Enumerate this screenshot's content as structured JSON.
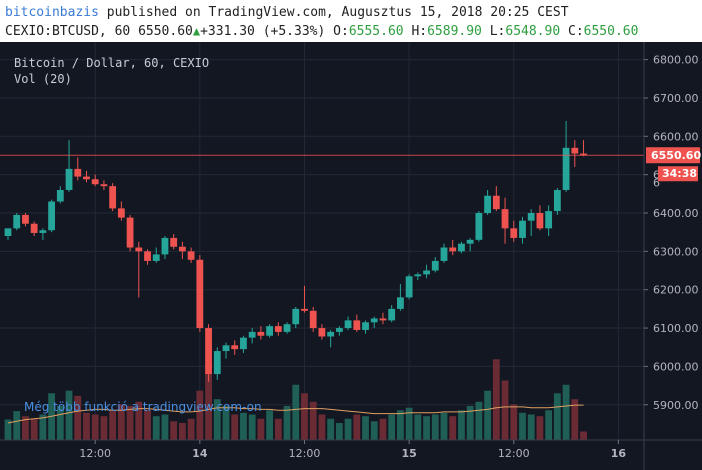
{
  "header": {
    "author": "bitcoinbazis",
    "published_text": " published on TradingView.com, Augusztus 15, 2018 20:25 CEST",
    "symbol": "CEXIO:BTCUSD, 60",
    "last": "6550.60",
    "change": "+331.30 (+5.33%)",
    "o_label": "O:",
    "o_value": "6555.60",
    "h_label": "H:",
    "h_value": "6589.90",
    "l_label": "L:",
    "l_value": "6548.90",
    "c_label": "C:",
    "c_value": "6550.60"
  },
  "legend": {
    "title": "Bitcoin / Dollar, 60, CEXIO",
    "volume": "Vol (20)"
  },
  "promo": "Még több funkció a tradingview.com-on",
  "colors": {
    "background": "#131722",
    "up": "#26a69a",
    "down": "#ef5350",
    "grid": "#232838",
    "price_line": "#ef5350",
    "vol_ma": "#e0a060"
  },
  "chart_data": {
    "type": "candlestick",
    "title": "Bitcoin / Dollar, 60, CEXIO",
    "ylim": [
      5800,
      6840
    ],
    "y_ticks": [
      5900,
      6000,
      6100,
      6200,
      6300,
      6400,
      6500,
      6600,
      6700,
      6800
    ],
    "y_tick_labels": [
      "5900.00",
      "6000.00",
      "6100.00",
      "6200.00",
      "6300.00",
      "6400.00",
      "6500.00",
      "6600.00",
      "6700.00",
      "6800.00"
    ],
    "x_ticks": [
      {
        "index": 10,
        "label": "12:00"
      },
      {
        "index": 22,
        "label": "14"
      },
      {
        "index": 34,
        "label": "12:00"
      },
      {
        "index": 46,
        "label": "15"
      },
      {
        "index": 58,
        "label": "12:00"
      },
      {
        "index": 70,
        "label": "16"
      }
    ],
    "last_price": 6550.6,
    "last_price_label": "6550.60",
    "countdown_label": "34:38",
    "hidden_label_fragment": "6",
    "candles": [
      {
        "o": 6340,
        "h": 6360,
        "l": 6330,
        "c": 6360,
        "v": 24
      },
      {
        "o": 6360,
        "h": 6400,
        "l": 6355,
        "c": 6395,
        "v": 34
      },
      {
        "o": 6395,
        "h": 6400,
        "l": 6365,
        "c": 6372,
        "v": 28
      },
      {
        "o": 6372,
        "h": 6378,
        "l": 6340,
        "c": 6348,
        "v": 25
      },
      {
        "o": 6348,
        "h": 6360,
        "l": 6330,
        "c": 6355,
        "v": 30
      },
      {
        "o": 6355,
        "h": 6435,
        "l": 6350,
        "c": 6430,
        "v": 55
      },
      {
        "o": 6430,
        "h": 6470,
        "l": 6425,
        "c": 6460,
        "v": 40
      },
      {
        "o": 6460,
        "h": 6590,
        "l": 6455,
        "c": 6515,
        "v": 58
      },
      {
        "o": 6515,
        "h": 6545,
        "l": 6485,
        "c": 6495,
        "v": 52
      },
      {
        "o": 6495,
        "h": 6510,
        "l": 6480,
        "c": 6488,
        "v": 32
      },
      {
        "o": 6488,
        "h": 6500,
        "l": 6470,
        "c": 6475,
        "v": 30
      },
      {
        "o": 6475,
        "h": 6485,
        "l": 6460,
        "c": 6470,
        "v": 28
      },
      {
        "o": 6470,
        "h": 6478,
        "l": 6405,
        "c": 6412,
        "v": 34
      },
      {
        "o": 6412,
        "h": 6430,
        "l": 6380,
        "c": 6388,
        "v": 42
      },
      {
        "o": 6388,
        "h": 6395,
        "l": 6300,
        "c": 6310,
        "v": 40
      },
      {
        "o": 6310,
        "h": 6325,
        "l": 6180,
        "c": 6300,
        "v": 45
      },
      {
        "o": 6300,
        "h": 6305,
        "l": 6265,
        "c": 6275,
        "v": 35
      },
      {
        "o": 6275,
        "h": 6310,
        "l": 6270,
        "c": 6292,
        "v": 28
      },
      {
        "o": 6292,
        "h": 6340,
        "l": 6280,
        "c": 6335,
        "v": 30
      },
      {
        "o": 6335,
        "h": 6345,
        "l": 6305,
        "c": 6312,
        "v": 22
      },
      {
        "o": 6312,
        "h": 6325,
        "l": 6280,
        "c": 6300,
        "v": 20
      },
      {
        "o": 6300,
        "h": 6310,
        "l": 6270,
        "c": 6278,
        "v": 25
      },
      {
        "o": 6278,
        "h": 6290,
        "l": 6090,
        "c": 6100,
        "v": 58
      },
      {
        "o": 6100,
        "h": 6110,
        "l": 5960,
        "c": 5980,
        "v": 80
      },
      {
        "o": 5980,
        "h": 6050,
        "l": 5965,
        "c": 6040,
        "v": 48
      },
      {
        "o": 6040,
        "h": 6062,
        "l": 6020,
        "c": 6055,
        "v": 40
      },
      {
        "o": 6055,
        "h": 6068,
        "l": 6030,
        "c": 6045,
        "v": 30
      },
      {
        "o": 6045,
        "h": 6080,
        "l": 6035,
        "c": 6075,
        "v": 32
      },
      {
        "o": 6075,
        "h": 6100,
        "l": 6060,
        "c": 6090,
        "v": 30
      },
      {
        "o": 6090,
        "h": 6105,
        "l": 6070,
        "c": 6080,
        "v": 25
      },
      {
        "o": 6080,
        "h": 6110,
        "l": 6075,
        "c": 6105,
        "v": 35
      },
      {
        "o": 6105,
        "h": 6115,
        "l": 6080,
        "c": 6090,
        "v": 25
      },
      {
        "o": 6090,
        "h": 6115,
        "l": 6085,
        "c": 6110,
        "v": 40
      },
      {
        "o": 6110,
        "h": 6155,
        "l": 6100,
        "c": 6150,
        "v": 65
      },
      {
        "o": 6150,
        "h": 6210,
        "l": 6140,
        "c": 6145,
        "v": 55
      },
      {
        "o": 6145,
        "h": 6155,
        "l": 6090,
        "c": 6100,
        "v": 45
      },
      {
        "o": 6100,
        "h": 6110,
        "l": 6070,
        "c": 6078,
        "v": 30
      },
      {
        "o": 6078,
        "h": 6095,
        "l": 6050,
        "c": 6090,
        "v": 25
      },
      {
        "o": 6090,
        "h": 6105,
        "l": 6080,
        "c": 6100,
        "v": 20
      },
      {
        "o": 6100,
        "h": 6130,
        "l": 6095,
        "c": 6120,
        "v": 25
      },
      {
        "o": 6120,
        "h": 6135,
        "l": 6090,
        "c": 6095,
        "v": 30
      },
      {
        "o": 6095,
        "h": 6120,
        "l": 6085,
        "c": 6115,
        "v": 28
      },
      {
        "o": 6115,
        "h": 6130,
        "l": 6100,
        "c": 6125,
        "v": 22
      },
      {
        "o": 6125,
        "h": 6140,
        "l": 6110,
        "c": 6120,
        "v": 25
      },
      {
        "o": 6120,
        "h": 6160,
        "l": 6115,
        "c": 6150,
        "v": 30
      },
      {
        "o": 6150,
        "h": 6215,
        "l": 6145,
        "c": 6180,
        "v": 35
      },
      {
        "o": 6180,
        "h": 6240,
        "l": 6175,
        "c": 6235,
        "v": 38
      },
      {
        "o": 6235,
        "h": 6245,
        "l": 6225,
        "c": 6240,
        "v": 30
      },
      {
        "o": 6240,
        "h": 6265,
        "l": 6230,
        "c": 6250,
        "v": 28
      },
      {
        "o": 6250,
        "h": 6285,
        "l": 6245,
        "c": 6275,
        "v": 30
      },
      {
        "o": 6275,
        "h": 6320,
        "l": 6270,
        "c": 6310,
        "v": 32
      },
      {
        "o": 6310,
        "h": 6330,
        "l": 6290,
        "c": 6300,
        "v": 28
      },
      {
        "o": 6300,
        "h": 6325,
        "l": 6295,
        "c": 6320,
        "v": 35
      },
      {
        "o": 6320,
        "h": 6335,
        "l": 6300,
        "c": 6330,
        "v": 40
      },
      {
        "o": 6330,
        "h": 6405,
        "l": 6325,
        "c": 6400,
        "v": 45
      },
      {
        "o": 6400,
        "h": 6460,
        "l": 6395,
        "c": 6445,
        "v": 58
      },
      {
        "o": 6445,
        "h": 6470,
        "l": 6405,
        "c": 6410,
        "v": 95
      },
      {
        "o": 6410,
        "h": 6440,
        "l": 6320,
        "c": 6360,
        "v": 70
      },
      {
        "o": 6360,
        "h": 6380,
        "l": 6325,
        "c": 6335,
        "v": 42
      },
      {
        "o": 6335,
        "h": 6390,
        "l": 6320,
        "c": 6380,
        "v": 32
      },
      {
        "o": 6380,
        "h": 6410,
        "l": 6340,
        "c": 6400,
        "v": 30
      },
      {
        "o": 6400,
        "h": 6420,
        "l": 6355,
        "c": 6360,
        "v": 28
      },
      {
        "o": 6360,
        "h": 6420,
        "l": 6340,
        "c": 6405,
        "v": 35
      },
      {
        "o": 6405,
        "h": 6465,
        "l": 6395,
        "c": 6460,
        "v": 55
      },
      {
        "o": 6460,
        "h": 6640,
        "l": 6455,
        "c": 6570,
        "v": 65
      },
      {
        "o": 6570,
        "h": 6590,
        "l": 6520,
        "c": 6555,
        "v": 48
      },
      {
        "o": 6555,
        "h": 6590,
        "l": 6548,
        "c": 6550,
        "v": 10
      }
    ],
    "vol_ma": [
      20,
      22,
      24,
      25,
      26,
      28,
      30,
      32,
      34,
      35,
      36,
      36,
      35,
      35,
      36,
      37,
      37,
      36,
      35,
      34,
      33,
      33,
      34,
      36,
      38,
      38,
      38,
      37,
      37,
      36,
      36,
      35,
      35,
      36,
      37,
      37,
      37,
      36,
      35,
      34,
      33,
      32,
      31,
      31,
      31,
      31,
      32,
      32,
      32,
      32,
      33,
      33,
      33,
      34,
      35,
      36,
      38,
      39,
      39,
      39,
      38,
      38,
      38,
      39,
      40,
      41,
      41
    ]
  },
  "axes": {
    "x_tick_labels": [
      "12:00",
      "14",
      "12:00",
      "15",
      "12:00",
      "16"
    ]
  }
}
